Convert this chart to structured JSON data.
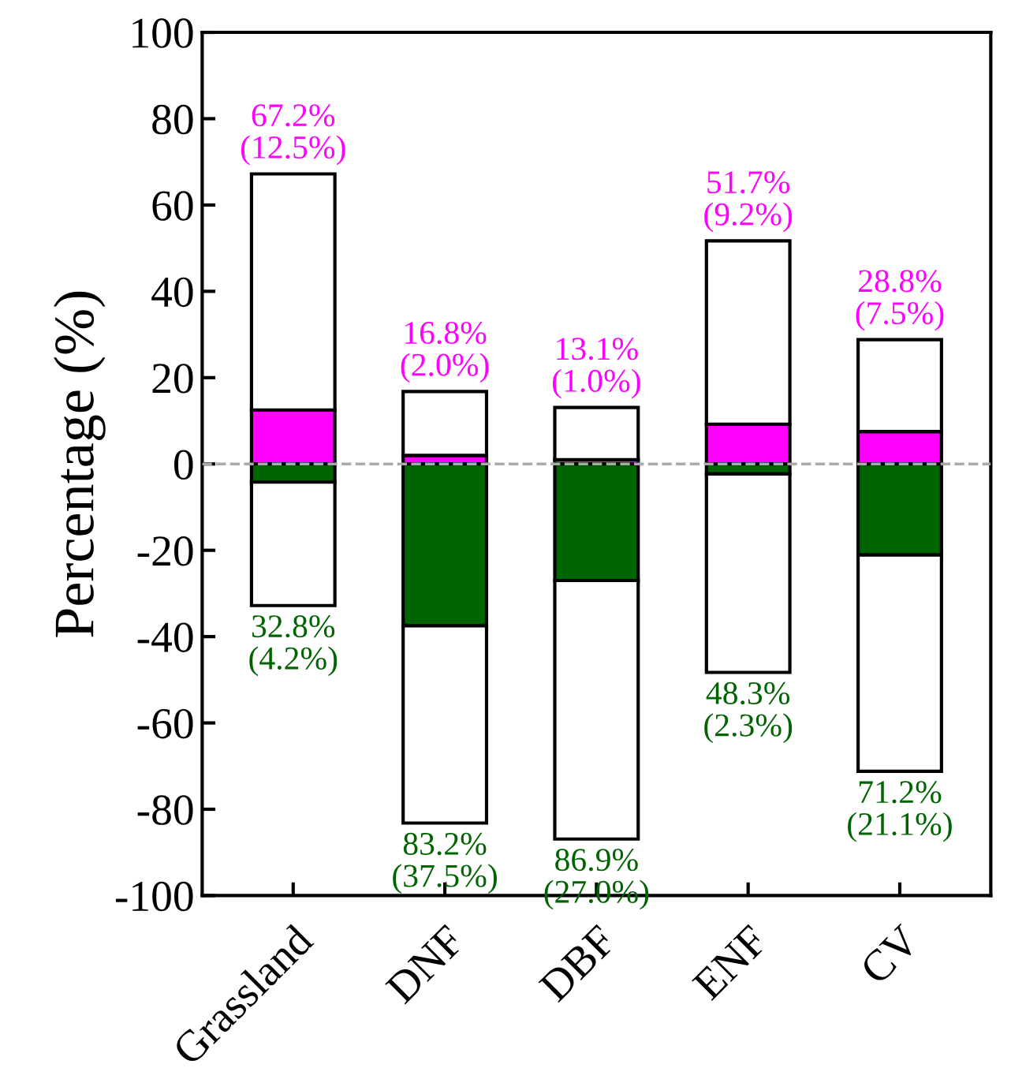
{
  "chart_data": {
    "type": "bar",
    "ylabel": "Percentage (%)",
    "stacked": true,
    "categories": [
      "Grassland",
      "DNF",
      "DBF",
      "ENF",
      "CV"
    ],
    "series": [
      {
        "color": "#ff00ff",
        "values": [
          12.5,
          2.0,
          1.0,
          9.2,
          7.5
        ]
      },
      {
        "color": "#ffffff",
        "values": [
          54.7,
          14.8,
          12.1,
          42.5,
          21.3
        ]
      },
      {
        "color": "#006400",
        "values": [
          -4.2,
          -37.5,
          -27.0,
          -2.3,
          -21.1
        ]
      },
      {
        "color": "#ffffff",
        "values": [
          -28.6,
          -45.7,
          -59.9,
          -46.0,
          -50.1
        ]
      }
    ],
    "annotations": [
      {
        "text": "67.2%\n(12.5%)",
        "x": "Grassland",
        "y": 67.2
      },
      {
        "text": "16.8%\n(2.0%)",
        "x": "DNF",
        "y": 16.8
      },
      {
        "text": "13.1%\n(1.0%)",
        "x": "DBF",
        "y": 13.1
      },
      {
        "text": "51.7%\n(9.2%)",
        "x": "ENF",
        "y": 51.7
      },
      {
        "text": "28.8%\n(7.5%)",
        "x": "CV",
        "y": 28.8
      },
      {
        "text": "32.8%\n(4.2%)",
        "x": "Grassland",
        "y": -32.8
      },
      {
        "text": "83.2%\n(37.5%)",
        "x": "DNF",
        "y": -83.2
      },
      {
        "text": "86.9%\n(27.0%)",
        "x": "DBF",
        "y": -86.9
      },
      {
        "text": "48.3%\n(2.3%)",
        "x": "ENF",
        "y": -48.3
      },
      {
        "text": "71.2%\n(21.1%)",
        "x": "CV",
        "y": -71.2
      }
    ],
    "ylim": [
      -100,
      100
    ],
    "yticks": [
      -100,
      -80,
      -60,
      -40,
      -20,
      0,
      20,
      40,
      60,
      80,
      100
    ],
    "ref_lines": [
      {
        "axis": "y",
        "value": 0,
        "color": "#aaaaaa",
        "line_style": "dashed"
      }
    ],
    "grid": false,
    "legend": false
  }
}
